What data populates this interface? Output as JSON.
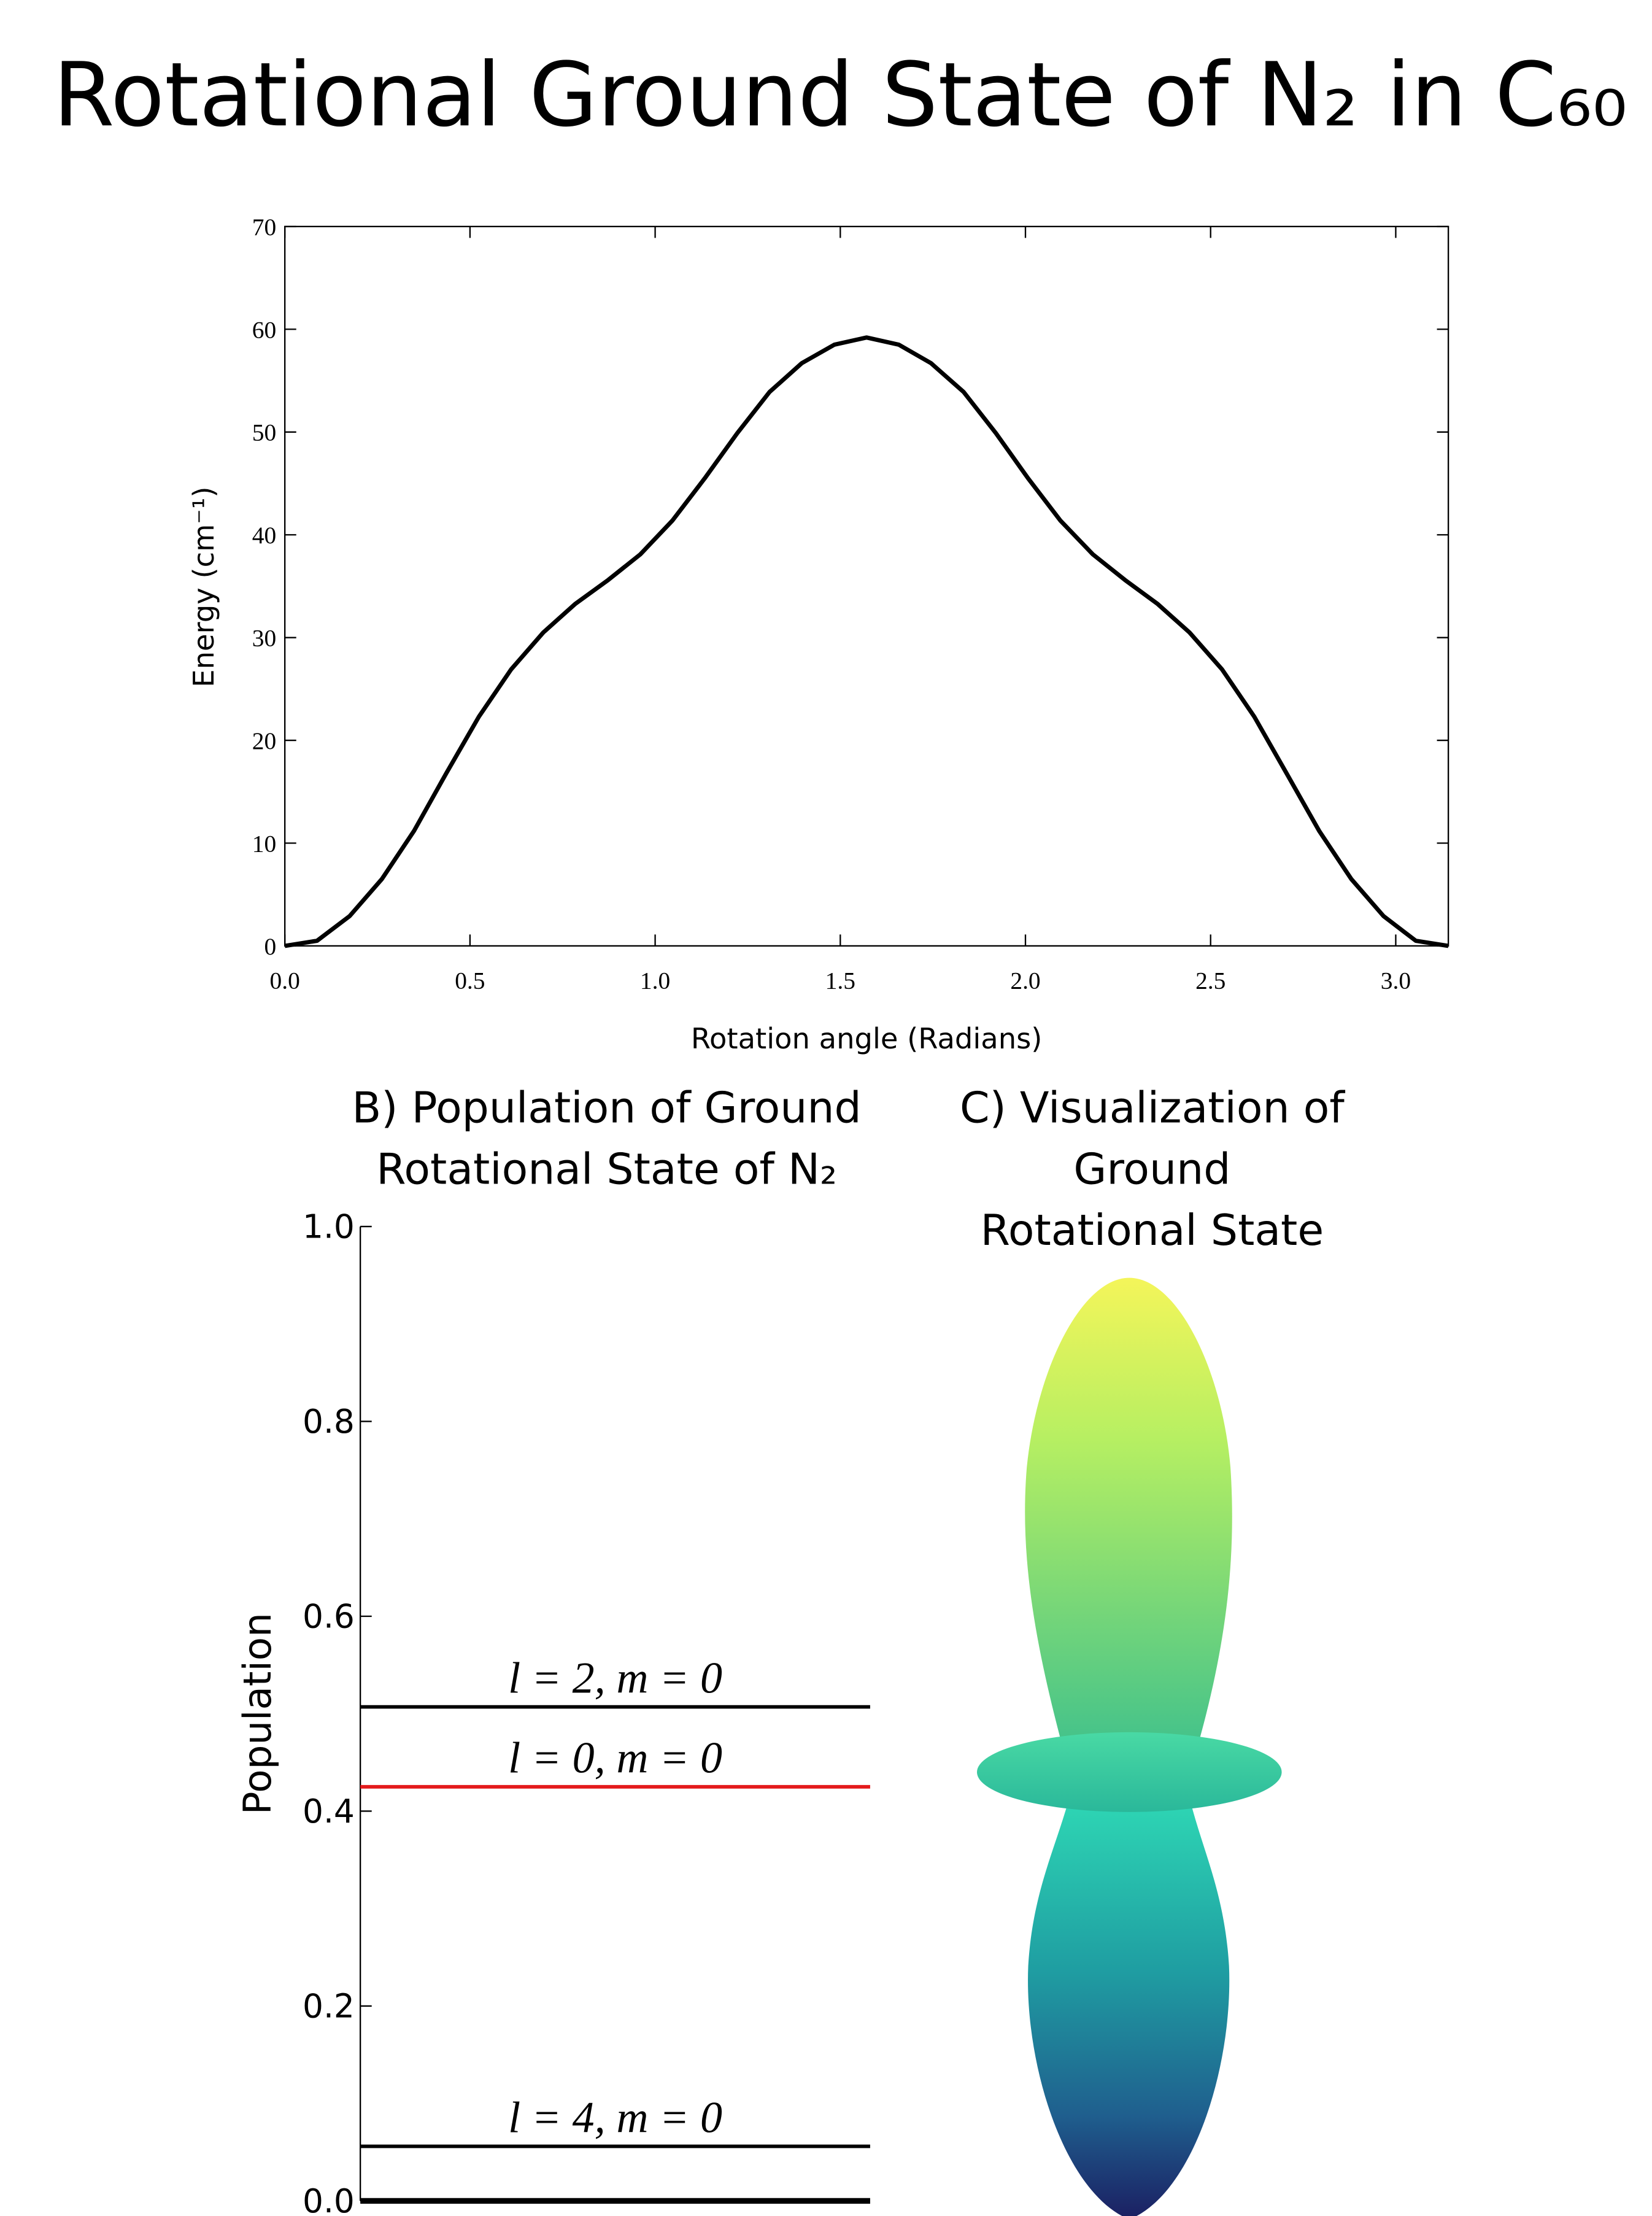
{
  "title": "Rotational Ground State of N₂ in C₆₀",
  "chart_data": [
    {
      "type": "line",
      "x_label": "Rotation angle (Radians)",
      "y_label": "Energy (cm⁻¹)",
      "color": "#000000",
      "x": [
        0,
        0.087,
        0.175,
        0.262,
        0.349,
        0.436,
        0.524,
        0.611,
        0.698,
        0.785,
        0.873,
        0.96,
        1.047,
        1.134,
        1.222,
        1.309,
        1.396,
        1.484,
        1.571,
        1.658,
        1.745,
        1.833,
        1.92,
        2.007,
        2.094,
        2.182,
        2.269,
        2.356,
        2.443,
        2.531,
        2.618,
        2.705,
        2.793,
        2.88,
        2.967,
        3.054,
        3.142
      ],
      "values": [
        0,
        0.5,
        2.9,
        6.5,
        11.2,
        16.8,
        22.3,
        26.9,
        30.5,
        33.3,
        35.6,
        38.1,
        41.4,
        45.5,
        49.9,
        53.9,
        56.7,
        58.5,
        59.2,
        58.5,
        56.7,
        53.9,
        49.9,
        45.5,
        41.4,
        38.1,
        35.6,
        33.3,
        30.5,
        26.9,
        22.3,
        16.8,
        11.2,
        6.5,
        2.9,
        0.5,
        0
      ],
      "xlim": [
        0,
        3.142
      ],
      "ylim": [
        0,
        70
      ],
      "xticks": [
        {
          "value": 0,
          "label": "0.0"
        },
        0.5,
        {
          "value": 1,
          "label": "1.0"
        },
        1.5,
        {
          "value": 2,
          "label": "2.0"
        },
        2.5,
        {
          "value": 3,
          "label": "3.0"
        }
      ],
      "yticks": [
        0,
        10,
        20,
        30,
        40,
        50,
        60,
        70
      ]
    },
    {
      "type": "level",
      "title_lines": [
        "B) Population of Ground",
        "Rotational State of N₂"
      ],
      "y_label": "Population",
      "categories": [
        "l = 2, m = 0",
        "l = 0, m = 0",
        "l = 4, m = 0",
        null
      ],
      "values": [
        0.507,
        0.425,
        0.056,
        0.0
      ],
      "colors": [
        "#000000",
        "#e41a1c",
        "#000000",
        "#000000"
      ],
      "ylim": [
        0,
        1
      ],
      "yticks": [
        {
          "value": 0,
          "label": "0.0"
        },
        {
          "value": 0.2,
          "label": "0.2"
        },
        {
          "value": 0.4,
          "label": "0.4"
        },
        {
          "value": 0.6,
          "label": "0.6"
        },
        {
          "value": 0.8,
          "label": "0.8"
        },
        {
          "value": 1,
          "label": "1.0"
        }
      ]
    },
    {
      "type": "surface",
      "title_lines": [
        "C) Visualization of",
        "Ground",
        "Rotational State"
      ]
    }
  ]
}
